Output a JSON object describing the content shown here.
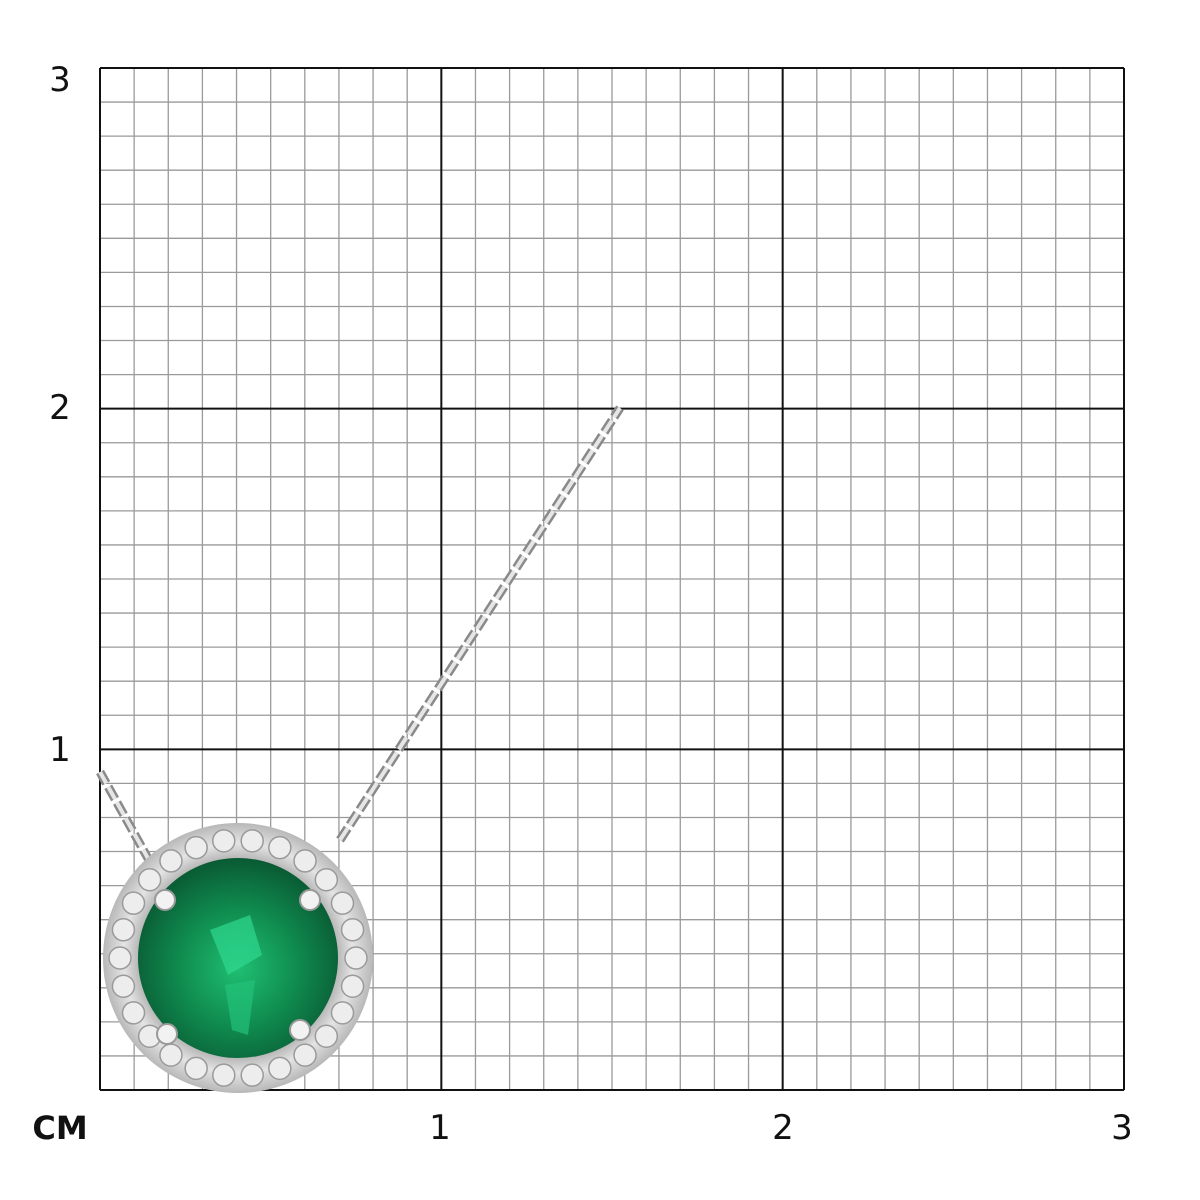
{
  "scale": {
    "unit_label": "CM",
    "x_ticks": [
      "1",
      "2",
      "3"
    ],
    "y_ticks": [
      "1",
      "2",
      "3"
    ],
    "range_cm": [
      0,
      3
    ],
    "minor_divisions_per_cm": 10
  },
  "product": {
    "type": "halo pendant necklace",
    "center_stone_color": "#0f8a4e",
    "metal_color": "#c8c8c8"
  },
  "colors": {
    "major_grid": "#111111",
    "minor_grid": "#9a9a9a"
  }
}
